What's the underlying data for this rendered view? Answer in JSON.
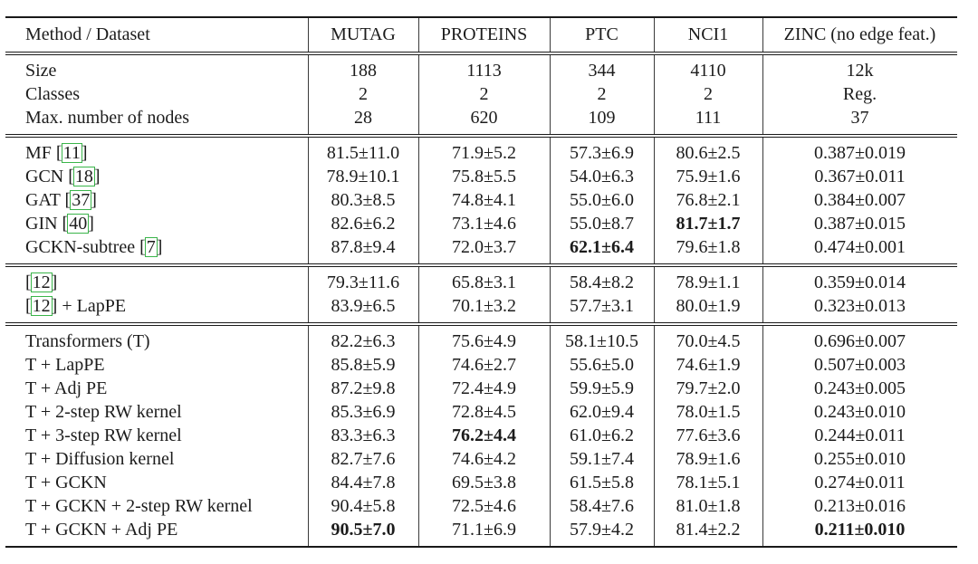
{
  "colors": {
    "citation_box": "#3ab54a",
    "text": "#1c1c1c",
    "rule": "#1a1a1a"
  },
  "table": {
    "header": [
      "Method / Dataset",
      "MUTAG",
      "PROTEINS",
      "PTC",
      "NCI1",
      "ZINC (no edge feat.)"
    ],
    "blocks": [
      {
        "rows": [
          {
            "method": [
              {
                "t": "Size"
              }
            ],
            "cells": [
              "188",
              "1113",
              "344",
              "4110",
              "12k"
            ],
            "bold": []
          },
          {
            "method": [
              {
                "t": "Classes"
              }
            ],
            "cells": [
              "2",
              "2",
              "2",
              "2",
              "Reg."
            ],
            "bold": []
          },
          {
            "method": [
              {
                "t": "Max. number of nodes"
              }
            ],
            "cells": [
              "28",
              "620",
              "109",
              "111",
              "37"
            ],
            "bold": []
          }
        ]
      },
      {
        "rows": [
          {
            "method": [
              {
                "t": "MF ["
              },
              {
                "c": "11"
              },
              {
                "t": "]"
              }
            ],
            "cells": [
              "81.5±11.0",
              "71.9±5.2",
              "57.3±6.9",
              "80.6±2.5",
              "0.387±0.019"
            ],
            "bold": []
          },
          {
            "method": [
              {
                "t": "GCN ["
              },
              {
                "c": "18"
              },
              {
                "t": "]"
              }
            ],
            "cells": [
              "78.9±10.1",
              "75.8±5.5",
              "54.0±6.3",
              "75.9±1.6",
              "0.367±0.011"
            ],
            "bold": []
          },
          {
            "method": [
              {
                "t": "GAT ["
              },
              {
                "c": "37"
              },
              {
                "t": "]"
              }
            ],
            "cells": [
              "80.3±8.5",
              "74.8±4.1",
              "55.0±6.0",
              "76.8±2.1",
              "0.384±0.007"
            ],
            "bold": []
          },
          {
            "method": [
              {
                "t": "GIN ["
              },
              {
                "c": "40"
              },
              {
                "t": "]"
              }
            ],
            "cells": [
              "82.6±6.2",
              "73.1±4.6",
              "55.0±8.7",
              "81.7±1.7",
              "0.387±0.015"
            ],
            "bold": [
              3
            ]
          },
          {
            "method": [
              {
                "t": "GCKN-subtree ["
              },
              {
                "c": "7"
              },
              {
                "t": "]"
              }
            ],
            "cells": [
              "87.8±9.4",
              "72.0±3.7",
              "62.1±6.4",
              "79.6±1.8",
              "0.474±0.001"
            ],
            "bold": [
              2
            ]
          }
        ]
      },
      {
        "rows": [
          {
            "method": [
              {
                "t": "["
              },
              {
                "c": "12"
              },
              {
                "t": "]"
              }
            ],
            "cells": [
              "79.3±11.6",
              "65.8±3.1",
              "58.4±8.2",
              "78.9±1.1",
              "0.359±0.014"
            ],
            "bold": []
          },
          {
            "method": [
              {
                "t": "["
              },
              {
                "c": "12"
              },
              {
                "t": "] + LapPE"
              }
            ],
            "cells": [
              "83.9±6.5",
              "70.1±3.2",
              "57.7±3.1",
              "80.0±1.9",
              "0.323±0.013"
            ],
            "bold": []
          }
        ]
      },
      {
        "rows": [
          {
            "method": [
              {
                "t": "Transformers (T)"
              }
            ],
            "cells": [
              "82.2±6.3",
              "75.6±4.9",
              "58.1±10.5",
              "70.0±4.5",
              "0.696±0.007"
            ],
            "bold": []
          },
          {
            "method": [
              {
                "t": "T + LapPE"
              }
            ],
            "cells": [
              "85.8±5.9",
              "74.6±2.7",
              "55.6±5.0",
              "74.6±1.9",
              "0.507±0.003"
            ],
            "bold": []
          },
          {
            "method": [
              {
                "t": "T + Adj PE"
              }
            ],
            "cells": [
              "87.2±9.8",
              "72.4±4.9",
              "59.9±5.9",
              "79.7±2.0",
              "0.243±0.005"
            ],
            "bold": []
          },
          {
            "method": [
              {
                "t": "T + 2-step RW kernel"
              }
            ],
            "cells": [
              "85.3±6.9",
              "72.8±4.5",
              "62.0±9.4",
              "78.0±1.5",
              "0.243±0.010"
            ],
            "bold": []
          },
          {
            "method": [
              {
                "t": "T + 3-step RW kernel"
              }
            ],
            "cells": [
              "83.3±6.3",
              "76.2±4.4",
              "61.0±6.2",
              "77.6±3.6",
              "0.244±0.011"
            ],
            "bold": [
              1
            ]
          },
          {
            "method": [
              {
                "t": "T + Diffusion kernel"
              }
            ],
            "cells": [
              "82.7±7.6",
              "74.6±4.2",
              "59.1±7.4",
              "78.9±1.6",
              "0.255±0.010"
            ],
            "bold": []
          },
          {
            "method": [
              {
                "t": "T + GCKN"
              }
            ],
            "cells": [
              "84.4±7.8",
              "69.5±3.8",
              "61.5±5.8",
              "78.1±5.1",
              "0.274±0.011"
            ],
            "bold": []
          },
          {
            "method": [
              {
                "t": "T + GCKN + 2-step RW kernel"
              }
            ],
            "cells": [
              "90.4±5.8",
              "72.5±4.6",
              "58.4±7.6",
              "81.0±1.8",
              "0.213±0.016"
            ],
            "bold": []
          },
          {
            "method": [
              {
                "t": "T + GCKN + Adj PE"
              }
            ],
            "cells": [
              "90.5±7.0",
              "71.1±6.9",
              "57.9±4.2",
              "81.4±2.2",
              "0.211±0.010"
            ],
            "bold": [
              0,
              4
            ]
          }
        ]
      }
    ]
  }
}
